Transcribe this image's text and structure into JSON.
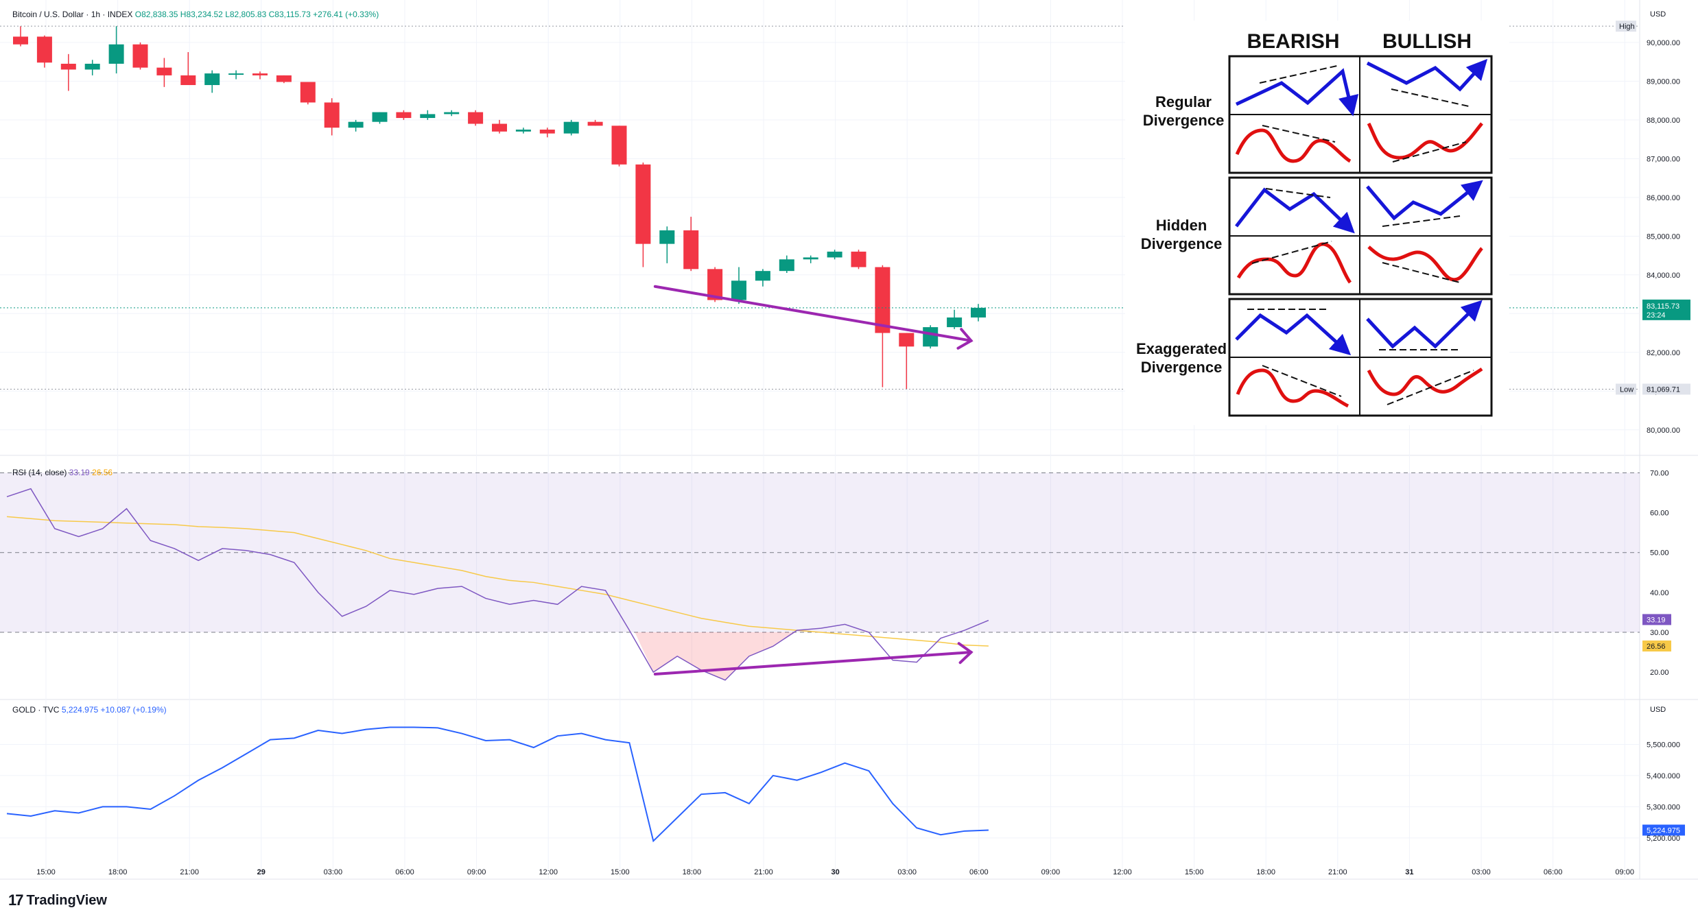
{
  "main_header": {
    "symbol": "Bitcoin / U.S. Dollar · 1h · INDEX",
    "o": "O82,838.35",
    "h": "H83,234.52",
    "l": "L82,805.83",
    "c": "C83,115.73",
    "chg": "+276.41 (+0.33%)"
  },
  "rsi_header": {
    "name": "RSI (14, close)",
    "v1": "33.19",
    "v2": "26.56"
  },
  "gold_header": {
    "name": "GOLD · TVC",
    "v1": "5,224.975",
    "v2": "+10.087 (+0.19%)"
  },
  "brand": {
    "name": "TradingView",
    "mark": "17"
  },
  "price_axis": {
    "currency": "USD",
    "high_label": "High",
    "low_label": "Low",
    "low_value": "81,069.71",
    "last_value": "83,115.73",
    "countdown": "23:24"
  },
  "rsi_axis": {
    "last_rsi": "33.19",
    "last_ma": "26.56"
  },
  "gold_axis": {
    "currency": "USD",
    "last_value": "5,224.975"
  },
  "time_axis": [
    "15:00",
    "18:00",
    "21:00",
    "29",
    "03:00",
    "06:00",
    "09:00",
    "12:00",
    "15:00",
    "18:00",
    "21:00",
    "30",
    "03:00",
    "06:00",
    "09:00",
    "12:00",
    "15:00",
    "18:00",
    "21:00",
    "31",
    "03:00",
    "06:00",
    "09:00"
  ],
  "divergence_panel": {
    "col_headers": [
      "BEARISH",
      "BULLISH"
    ],
    "rows": [
      {
        "line1": "Regular",
        "line2": "Divergence"
      },
      {
        "line1": "Hidden",
        "line2": "Divergence"
      },
      {
        "line1": "Exaggerated",
        "line2": "Divergence"
      }
    ]
  },
  "colors": {
    "up": "#089981",
    "down": "#f23645",
    "rsi": "#7e57c2",
    "rsi_ma": "#f7c948",
    "gold": "#2962ff",
    "annotation": "#9c27b0",
    "panel_blue": "#1616d8",
    "panel_red": "#e01010"
  },
  "chart_data": [
    {
      "type": "candlestick",
      "title": "Bitcoin / U.S. Dollar · 1h · INDEX",
      "ylim": [
        79500,
        90600
      ],
      "y_ticks": [
        80000,
        81000,
        82000,
        83000,
        84000,
        85000,
        86000,
        87000,
        88000,
        89000,
        90000
      ],
      "x_ticks": [
        "15:00",
        "18:00",
        "21:00",
        "29",
        "03:00",
        "06:00",
        "09:00",
        "12:00",
        "15:00",
        "18:00",
        "21:00",
        "30",
        "03:00",
        "06:00",
        "09:00",
        "12:00",
        "15:00",
        "18:00",
        "21:00",
        "31",
        "03:00",
        "06:00",
        "09:00"
      ],
      "ohlc": [
        [
          90150,
          90420,
          89900,
          89950
        ],
        [
          90150,
          90180,
          89350,
          89480
        ],
        [
          89450,
          89700,
          88750,
          89300
        ],
        [
          89300,
          89550,
          89150,
          89450
        ],
        [
          89450,
          90420,
          89200,
          89950
        ],
        [
          89950,
          90000,
          89300,
          89350
        ],
        [
          89350,
          89600,
          88850,
          89150
        ],
        [
          89150,
          89750,
          88950,
          88900
        ],
        [
          88900,
          89280,
          88700,
          89200
        ],
        [
          89200,
          89280,
          89050,
          89200
        ],
        [
          89200,
          89250,
          89050,
          89150
        ],
        [
          89150,
          89150,
          88950,
          88980
        ],
        [
          88980,
          88980,
          88400,
          88450
        ],
        [
          88450,
          88560,
          87600,
          87800
        ],
        [
          87800,
          88000,
          87700,
          87950
        ],
        [
          87950,
          88200,
          87900,
          88200
        ],
        [
          88200,
          88250,
          88000,
          88050
        ],
        [
          88050,
          88250,
          88000,
          88150
        ],
        [
          88150,
          88250,
          88100,
          88200
        ],
        [
          88200,
          88250,
          87850,
          87900
        ],
        [
          87900,
          88000,
          87650,
          87700
        ],
        [
          87700,
          87800,
          87650,
          87750
        ],
        [
          87750,
          87800,
          87550,
          87650
        ],
        [
          87650,
          88000,
          87600,
          87950
        ],
        [
          87950,
          88000,
          87850,
          87850
        ],
        [
          87850,
          87850,
          86800,
          86850
        ],
        [
          86850,
          86900,
          84200,
          84800
        ],
        [
          84800,
          85250,
          84300,
          85150
        ],
        [
          85150,
          85500,
          84100,
          84150
        ],
        [
          84150,
          84200,
          83300,
          83350
        ],
        [
          83350,
          84200,
          83250,
          83850
        ],
        [
          83850,
          84150,
          83700,
          84100
        ],
        [
          84100,
          84500,
          84050,
          84400
        ],
        [
          84400,
          84500,
          84300,
          84450
        ],
        [
          84450,
          84650,
          84400,
          84600
        ],
        [
          84600,
          84650,
          84150,
          84200
        ],
        [
          84200,
          84250,
          81100,
          82500
        ],
        [
          82500,
          82500,
          81050,
          82150
        ],
        [
          82150,
          82700,
          82100,
          82650
        ],
        [
          82650,
          83100,
          82600,
          82900
        ],
        [
          82900,
          83250,
          82800,
          83150
        ]
      ],
      "annotations": [
        {
          "type": "arrow",
          "from_bar": 26.5,
          "from_price": 83700,
          "to_bar": 39.7,
          "to_price": 82300,
          "color": "#9c27b0"
        }
      ]
    },
    {
      "type": "line",
      "title": "RSI (14, close)",
      "ylim": [
        14,
        73
      ],
      "y_ticks": [
        20,
        30,
        40,
        50,
        60,
        70
      ],
      "levels": [
        70,
        50,
        30
      ],
      "series": [
        {
          "values": [
            64,
            66,
            56,
            54,
            56,
            61,
            53,
            51,
            48,
            51,
            50.5,
            49.5,
            47.5,
            40,
            34,
            36.5,
            40.5,
            39.5,
            41,
            41.5,
            38.5,
            37,
            38,
            37,
            41.5,
            40.5,
            30.5,
            20,
            24,
            20.5,
            18,
            24,
            26.5,
            30.5,
            31,
            32,
            30,
            23,
            22.5,
            28.5,
            30.5,
            33
          ]
        },
        {
          "values": [
            59,
            58.5,
            58,
            57.8,
            57.6,
            57.4,
            57.2,
            57,
            56.5,
            56.3,
            56,
            55.5,
            55,
            53.5,
            52,
            50.5,
            48.5,
            47.5,
            46.5,
            45.5,
            44,
            43,
            42.5,
            41.5,
            40.5,
            39.5,
            38,
            36.5,
            35,
            33.5,
            32.5,
            31.5,
            31,
            30.5,
            30,
            29.5,
            29,
            28.5,
            28,
            27.5,
            26.8,
            26.56
          ]
        }
      ],
      "annotations": [
        {
          "type": "arrow",
          "from_bar": 26.5,
          "from_value": 19.5,
          "to_bar": 39.7,
          "to_value": 25,
          "color": "#9c27b0"
        }
      ]
    },
    {
      "type": "line",
      "title": "GOLD · TVC",
      "ylim": [
        5160,
        5600
      ],
      "y_ticks": [
        5200,
        5300,
        5400,
        5500
      ],
      "series": [
        {
          "values": [
            5278,
            5270,
            5287,
            5280,
            5300,
            5300,
            5292,
            5335,
            5385,
            5425,
            5470,
            5515,
            5520,
            5545,
            5535,
            5548,
            5555,
            5555,
            5553,
            5535,
            5512,
            5515,
            5490,
            5527,
            5535,
            5515,
            5505,
            5190,
            5265,
            5340,
            5345,
            5310,
            5400,
            5385,
            5410,
            5440,
            5415,
            5310,
            5232,
            5210,
            5222,
            5225
          ]
        }
      ]
    }
  ]
}
